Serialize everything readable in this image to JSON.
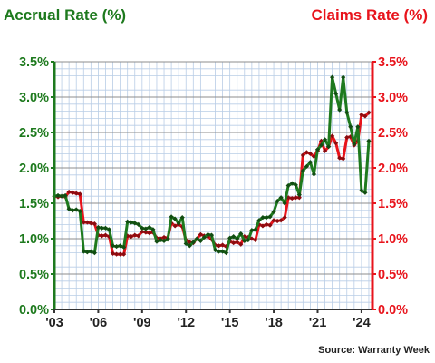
{
  "chart_data": {
    "type": "line",
    "left_axis_label": "Accrual Rate (%)",
    "right_axis_label": "Claims Rate (%)",
    "ylim": [
      0,
      3.5
    ],
    "y_ticks": [
      "0.0%",
      "0.5%",
      "1.0%",
      "1.5%",
      "2.0%",
      "2.5%",
      "3.0%",
      "3.5%"
    ],
    "x_range": [
      2003,
      2024.75
    ],
    "x_tick_labels": [
      "'03",
      "'06",
      "'09",
      "'12",
      "'15",
      "'18",
      "'21",
      "'24"
    ],
    "x_tick_values": [
      2003,
      2006,
      2009,
      2012,
      2015,
      2018,
      2021,
      2024
    ],
    "grid": true,
    "colors": {
      "accrual": "#1e7a1e",
      "claims": "#e8141c",
      "left_axis": "#1e7a1e",
      "right_axis": "#e8141c"
    },
    "series": [
      {
        "name": "Accrual Rate (%)",
        "x": [
          2003.0,
          2003.25,
          2003.5,
          2003.75,
          2004.0,
          2004.25,
          2004.5,
          2004.75,
          2005.0,
          2005.25,
          2005.5,
          2005.75,
          2006.0,
          2006.25,
          2006.5,
          2006.75,
          2007.0,
          2007.25,
          2007.5,
          2007.75,
          2008.0,
          2008.25,
          2008.5,
          2008.75,
          2009.0,
          2009.25,
          2009.5,
          2009.75,
          2010.0,
          2010.25,
          2010.5,
          2010.75,
          2011.0,
          2011.25,
          2011.5,
          2011.75,
          2012.0,
          2012.25,
          2012.5,
          2012.75,
          2013.0,
          2013.25,
          2013.5,
          2013.75,
          2014.0,
          2014.25,
          2014.5,
          2014.75,
          2015.0,
          2015.25,
          2015.5,
          2015.75,
          2016.0,
          2016.25,
          2016.5,
          2016.75,
          2017.0,
          2017.25,
          2017.5,
          2017.75,
          2018.0,
          2018.25,
          2018.5,
          2018.75,
          2019.0,
          2019.25,
          2019.5,
          2019.75,
          2020.0,
          2020.25,
          2020.5,
          2020.75,
          2021.0,
          2021.25,
          2021.5,
          2021.75,
          2022.0,
          2022.25,
          2022.5,
          2022.75,
          2023.0,
          2023.25,
          2023.5,
          2023.75,
          2024.0,
          2024.25,
          2024.5
        ],
        "values": [
          1.6,
          1.61,
          1.6,
          1.61,
          1.42,
          1.4,
          1.41,
          1.39,
          0.82,
          0.81,
          0.82,
          0.8,
          1.16,
          1.15,
          1.15,
          1.13,
          0.9,
          0.89,
          0.9,
          0.88,
          1.24,
          1.23,
          1.22,
          1.2,
          1.15,
          1.14,
          1.16,
          1.13,
          0.96,
          0.98,
          0.97,
          0.99,
          1.31,
          1.28,
          1.22,
          1.3,
          0.93,
          0.9,
          0.95,
          1.0,
          0.97,
          1.02,
          1.06,
          1.05,
          0.84,
          0.82,
          0.82,
          0.8,
          1.01,
          1.03,
          1.0,
          1.07,
          0.97,
          0.98,
          1.12,
          1.13,
          1.26,
          1.3,
          1.3,
          1.31,
          1.38,
          1.53,
          1.58,
          1.5,
          1.75,
          1.78,
          1.76,
          1.62,
          1.96,
          2.02,
          2.08,
          1.91,
          2.26,
          2.32,
          2.4,
          2.3,
          3.28,
          3.05,
          2.82,
          3.28,
          2.78,
          2.58,
          2.34,
          2.58,
          1.68,
          1.65,
          2.38
        ]
      },
      {
        "name": "Claims Rate (%)",
        "x": [
          2003.0,
          2003.25,
          2003.5,
          2003.75,
          2004.0,
          2004.25,
          2004.5,
          2004.75,
          2005.0,
          2005.25,
          2005.5,
          2005.75,
          2006.0,
          2006.25,
          2006.5,
          2006.75,
          2007.0,
          2007.25,
          2007.5,
          2007.75,
          2008.0,
          2008.25,
          2008.5,
          2008.75,
          2009.0,
          2009.25,
          2009.5,
          2009.75,
          2010.0,
          2010.25,
          2010.5,
          2010.75,
          2011.0,
          2011.25,
          2011.5,
          2011.75,
          2012.0,
          2012.25,
          2012.5,
          2012.75,
          2013.0,
          2013.25,
          2013.5,
          2013.75,
          2014.0,
          2014.25,
          2014.5,
          2014.75,
          2015.0,
          2015.25,
          2015.5,
          2015.75,
          2016.0,
          2016.25,
          2016.5,
          2016.75,
          2017.0,
          2017.25,
          2017.5,
          2017.75,
          2018.0,
          2018.25,
          2018.5,
          2018.75,
          2019.0,
          2019.25,
          2019.5,
          2019.75,
          2020.0,
          2020.25,
          2020.5,
          2020.75,
          2021.0,
          2021.25,
          2021.5,
          2021.75,
          2022.0,
          2022.25,
          2022.5,
          2022.75,
          2023.0,
          2023.25,
          2023.5,
          2023.75,
          2024.0,
          2024.25,
          2024.5
        ],
        "values": [
          1.6,
          1.59,
          1.6,
          1.59,
          1.66,
          1.65,
          1.64,
          1.63,
          1.23,
          1.23,
          1.22,
          1.21,
          1.05,
          1.04,
          1.05,
          1.03,
          0.79,
          0.78,
          0.78,
          0.78,
          1.04,
          1.03,
          1.05,
          1.04,
          1.1,
          1.09,
          1.08,
          1.09,
          1.01,
          1.0,
          1.02,
          1.01,
          1.22,
          1.18,
          1.2,
          1.17,
          0.98,
          0.95,
          0.94,
          1.0,
          1.06,
          1.04,
          1.03,
          0.99,
          0.91,
          0.9,
          0.91,
          0.89,
          0.96,
          0.94,
          0.95,
          0.92,
          1.03,
          1.02,
          1.0,
          0.98,
          1.2,
          1.18,
          1.2,
          1.19,
          1.26,
          1.25,
          1.26,
          1.3,
          1.58,
          1.57,
          1.58,
          1.58,
          2.18,
          2.22,
          2.2,
          2.16,
          2.24,
          2.38,
          2.24,
          2.3,
          2.45,
          2.35,
          2.14,
          2.13,
          2.43,
          2.44,
          2.32,
          2.38,
          2.75,
          2.73,
          2.78
        ]
      }
    ],
    "source": "Source: Warranty Week"
  }
}
